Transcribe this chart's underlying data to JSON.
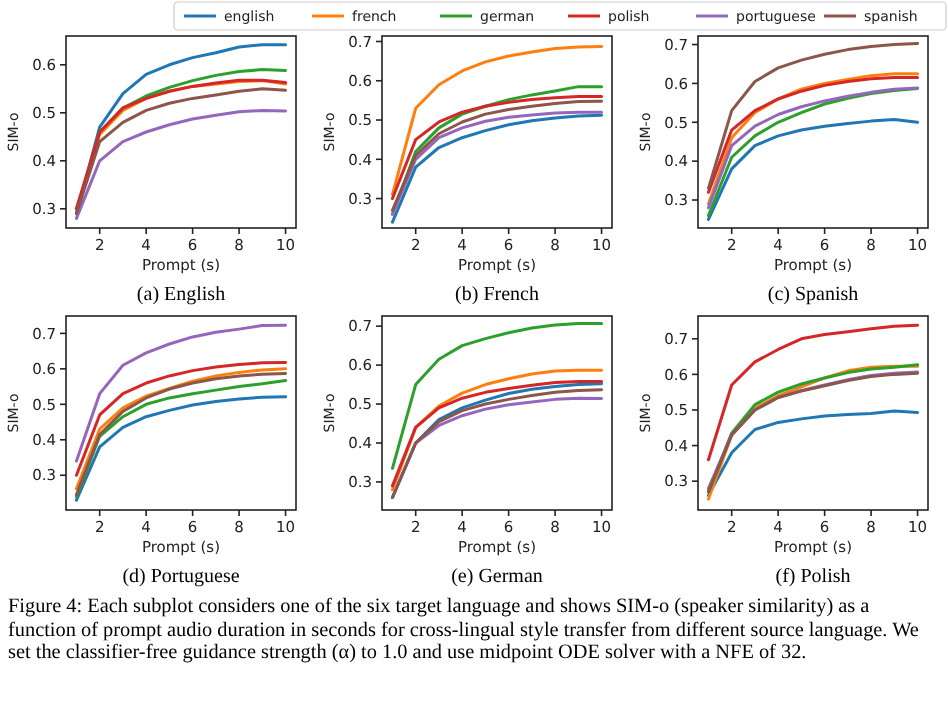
{
  "chart_data": [
    {
      "type": "line",
      "title": "(a) English",
      "xlabel": "Prompt (s)",
      "ylabel": "SIM-o",
      "legend": "top",
      "x": [
        1,
        2,
        3,
        4,
        5,
        6,
        7,
        8,
        9,
        10
      ],
      "xlim": [
        0.55,
        10.45
      ],
      "xticks": [
        2,
        4,
        6,
        8,
        10
      ],
      "ylim": [
        0.26,
        0.66
      ],
      "yticks": [
        0.3,
        0.4,
        0.5,
        0.6
      ],
      "series": [
        {
          "name": "english",
          "color": "#1f77b4",
          "values": [
            0.29,
            0.47,
            0.54,
            0.58,
            0.6,
            0.615,
            0.625,
            0.637,
            0.642,
            0.642
          ]
        },
        {
          "name": "french",
          "color": "#ff7f0e",
          "values": [
            0.3,
            0.455,
            0.505,
            0.53,
            0.545,
            0.555,
            0.56,
            0.565,
            0.567,
            0.56
          ]
        },
        {
          "name": "german",
          "color": "#2ca02c",
          "values": [
            0.29,
            0.46,
            0.51,
            0.535,
            0.553,
            0.567,
            0.578,
            0.586,
            0.59,
            0.588
          ]
        },
        {
          "name": "polish",
          "color": "#d62728",
          "values": [
            0.3,
            0.46,
            0.51,
            0.53,
            0.545,
            0.555,
            0.562,
            0.568,
            0.568,
            0.563
          ]
        },
        {
          "name": "portuguese",
          "color": "#9467bd",
          "values": [
            0.28,
            0.4,
            0.44,
            0.46,
            0.475,
            0.487,
            0.495,
            0.502,
            0.505,
            0.504
          ]
        },
        {
          "name": "spanish",
          "color": "#8c564b",
          "values": [
            0.29,
            0.44,
            0.48,
            0.505,
            0.52,
            0.53,
            0.537,
            0.545,
            0.55,
            0.547
          ]
        }
      ]
    },
    {
      "type": "line",
      "title": "(b) French",
      "xlabel": "Prompt (s)",
      "ylabel": "SIM-o",
      "x": [
        1,
        2,
        3,
        4,
        5,
        6,
        7,
        8,
        9,
        10
      ],
      "xlim": [
        0.55,
        10.45
      ],
      "xticks": [
        2,
        4,
        6,
        8,
        10
      ],
      "ylim": [
        0.225,
        0.714
      ],
      "yticks": [
        0.3,
        0.4,
        0.5,
        0.6,
        0.7
      ],
      "series": [
        {
          "color": "#1f77b4",
          "values": [
            0.24,
            0.38,
            0.43,
            0.455,
            0.473,
            0.488,
            0.498,
            0.505,
            0.51,
            0.512
          ]
        },
        {
          "color": "#ff7f0e",
          "values": [
            0.31,
            0.53,
            0.59,
            0.625,
            0.648,
            0.663,
            0.673,
            0.682,
            0.686,
            0.687
          ]
        },
        {
          "color": "#2ca02c",
          "values": [
            0.26,
            0.42,
            0.48,
            0.515,
            0.535,
            0.552,
            0.564,
            0.574,
            0.585,
            0.585
          ]
        },
        {
          "color": "#d62728",
          "values": [
            0.3,
            0.45,
            0.495,
            0.52,
            0.535,
            0.545,
            0.552,
            0.557,
            0.56,
            0.56
          ]
        },
        {
          "color": "#9467bd",
          "values": [
            0.26,
            0.4,
            0.455,
            0.48,
            0.497,
            0.507,
            0.513,
            0.518,
            0.52,
            0.52
          ]
        },
        {
          "color": "#8c564b",
          "values": [
            0.27,
            0.41,
            0.465,
            0.495,
            0.515,
            0.527,
            0.535,
            0.542,
            0.547,
            0.548
          ]
        }
      ]
    },
    {
      "type": "line",
      "title": "(c) Spanish",
      "xlabel": "Prompt (s)",
      "ylabel": "SIM-o",
      "x": [
        1,
        2,
        3,
        4,
        5,
        6,
        7,
        8,
        9,
        10
      ],
      "xlim": [
        0.55,
        10.45
      ],
      "xticks": [
        2,
        4,
        6,
        8,
        10
      ],
      "ylim": [
        0.228,
        0.722
      ],
      "yticks": [
        0.3,
        0.4,
        0.5,
        0.6,
        0.7
      ],
      "series": [
        {
          "color": "#1f77b4",
          "values": [
            0.25,
            0.38,
            0.44,
            0.465,
            0.48,
            0.49,
            0.497,
            0.503,
            0.507,
            0.5
          ]
        },
        {
          "color": "#ff7f0e",
          "values": [
            0.29,
            0.46,
            0.525,
            0.56,
            0.585,
            0.6,
            0.61,
            0.62,
            0.625,
            0.625
          ]
        },
        {
          "color": "#2ca02c",
          "values": [
            0.26,
            0.41,
            0.465,
            0.5,
            0.525,
            0.547,
            0.562,
            0.574,
            0.582,
            0.587
          ]
        },
        {
          "color": "#d62728",
          "values": [
            0.32,
            0.48,
            0.53,
            0.56,
            0.58,
            0.595,
            0.605,
            0.612,
            0.615,
            0.615
          ]
        },
        {
          "color": "#9467bd",
          "values": [
            0.28,
            0.44,
            0.49,
            0.52,
            0.54,
            0.555,
            0.567,
            0.577,
            0.585,
            0.588
          ]
        },
        {
          "color": "#8c564b",
          "values": [
            0.33,
            0.53,
            0.605,
            0.64,
            0.66,
            0.675,
            0.687,
            0.695,
            0.7,
            0.703
          ]
        }
      ]
    },
    {
      "type": "line",
      "title": "(d) Portuguese",
      "xlabel": "Prompt (s)",
      "ylabel": "SIM-o",
      "x": [
        1,
        2,
        3,
        4,
        5,
        6,
        7,
        8,
        9,
        10
      ],
      "xlim": [
        0.55,
        10.45
      ],
      "xticks": [
        2,
        4,
        6,
        8,
        10
      ],
      "ylim": [
        0.202,
        0.749
      ],
      "yticks": [
        0.3,
        0.4,
        0.5,
        0.6,
        0.7
      ],
      "series": [
        {
          "color": "#1f77b4",
          "values": [
            0.23,
            0.38,
            0.435,
            0.465,
            0.483,
            0.498,
            0.508,
            0.515,
            0.52,
            0.521
          ]
        },
        {
          "color": "#ff7f0e",
          "values": [
            0.262,
            0.43,
            0.49,
            0.523,
            0.545,
            0.565,
            0.58,
            0.59,
            0.597,
            0.6
          ]
        },
        {
          "color": "#2ca02c",
          "values": [
            0.24,
            0.41,
            0.465,
            0.5,
            0.518,
            0.53,
            0.54,
            0.55,
            0.558,
            0.567
          ]
        },
        {
          "color": "#d62728",
          "values": [
            0.3,
            0.47,
            0.53,
            0.56,
            0.58,
            0.595,
            0.605,
            0.612,
            0.617,
            0.618
          ]
        },
        {
          "color": "#9467bd",
          "values": [
            0.34,
            0.53,
            0.61,
            0.645,
            0.67,
            0.69,
            0.703,
            0.712,
            0.722,
            0.723
          ]
        },
        {
          "color": "#8c564b",
          "values": [
            0.245,
            0.415,
            0.48,
            0.518,
            0.543,
            0.56,
            0.572,
            0.58,
            0.585,
            0.587
          ]
        }
      ]
    },
    {
      "type": "line",
      "title": "(e) German",
      "xlabel": "Prompt (s)",
      "ylabel": "SIM-o",
      "x": [
        1,
        2,
        3,
        4,
        5,
        6,
        7,
        8,
        9,
        10
      ],
      "xlim": [
        0.55,
        10.45
      ],
      "xticks": [
        2,
        4,
        6,
        8,
        10
      ],
      "ylim": [
        0.228,
        0.726
      ],
      "yticks": [
        0.3,
        0.4,
        0.5,
        0.6,
        0.7
      ],
      "series": [
        {
          "color": "#1f77b4",
          "values": [
            0.26,
            0.4,
            0.46,
            0.49,
            0.51,
            0.527,
            0.538,
            0.545,
            0.55,
            0.552
          ]
        },
        {
          "color": "#ff7f0e",
          "values": [
            0.28,
            0.44,
            0.495,
            0.528,
            0.55,
            0.565,
            0.577,
            0.585,
            0.587,
            0.587
          ]
        },
        {
          "color": "#2ca02c",
          "values": [
            0.335,
            0.55,
            0.615,
            0.65,
            0.668,
            0.683,
            0.695,
            0.703,
            0.707,
            0.707
          ]
        },
        {
          "color": "#d62728",
          "values": [
            0.29,
            0.44,
            0.49,
            0.515,
            0.53,
            0.54,
            0.548,
            0.555,
            0.558,
            0.558
          ]
        },
        {
          "color": "#9467bd",
          "values": [
            0.26,
            0.4,
            0.445,
            0.47,
            0.487,
            0.498,
            0.505,
            0.512,
            0.515,
            0.514
          ]
        },
        {
          "color": "#8c564b",
          "values": [
            0.26,
            0.4,
            0.455,
            0.483,
            0.5,
            0.512,
            0.522,
            0.53,
            0.535,
            0.537
          ]
        }
      ]
    },
    {
      "type": "line",
      "title": "(f) Polish",
      "xlabel": "Prompt (s)",
      "ylabel": "SIM-o",
      "x": [
        1,
        2,
        3,
        4,
        5,
        6,
        7,
        8,
        9,
        10
      ],
      "xlim": [
        0.55,
        10.45
      ],
      "xticks": [
        2,
        4,
        6,
        8,
        10
      ],
      "ylim": [
        0.219,
        0.764
      ],
      "yticks": [
        0.3,
        0.4,
        0.5,
        0.6,
        0.7
      ],
      "annotations": [
        "Figure 4: Each subplot considers one of the six target language and shows SIM-o (speaker similarity) as a function of prompt audio duration in seconds for cross-lingual style transfer from different source language. We set the classifier-free guidance strength (α) to 1.0 and use midpoint ODE solver with a NFE of 32."
      ],
      "series": [
        {
          "color": "#1f77b4",
          "values": [
            0.26,
            0.38,
            0.445,
            0.465,
            0.475,
            0.483,
            0.487,
            0.49,
            0.497,
            0.493
          ]
        },
        {
          "color": "#ff7f0e",
          "values": [
            0.25,
            0.43,
            0.505,
            0.54,
            0.565,
            0.59,
            0.61,
            0.62,
            0.623,
            0.623
          ]
        },
        {
          "color": "#2ca02c",
          "values": [
            0.27,
            0.435,
            0.515,
            0.55,
            0.573,
            0.59,
            0.605,
            0.615,
            0.62,
            0.627
          ]
        },
        {
          "color": "#d62728",
          "values": [
            0.36,
            0.57,
            0.635,
            0.67,
            0.7,
            0.712,
            0.72,
            0.728,
            0.735,
            0.738
          ]
        },
        {
          "color": "#9467bd",
          "values": [
            0.28,
            0.43,
            0.5,
            0.535,
            0.555,
            0.57,
            0.585,
            0.597,
            0.603,
            0.607
          ]
        },
        {
          "color": "#8c564b",
          "values": [
            0.27,
            0.43,
            0.5,
            0.535,
            0.553,
            0.568,
            0.583,
            0.594,
            0.6,
            0.603
          ]
        }
      ]
    }
  ]
}
